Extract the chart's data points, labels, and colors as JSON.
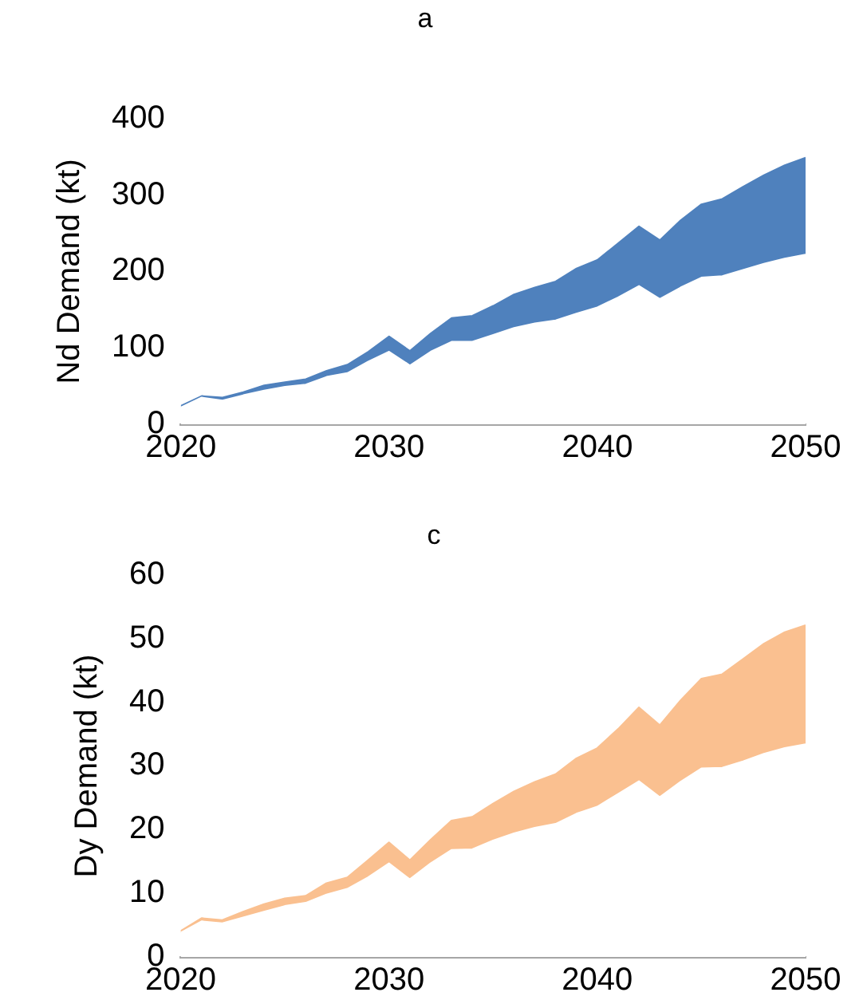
{
  "chart_data": [
    {
      "type": "area",
      "stacked": true,
      "title": "a",
      "ylabel": "Nd Demand (kt)",
      "x": [
        2020,
        2021,
        2022,
        2023,
        2024,
        2025,
        2026,
        2027,
        2028,
        2029,
        2030,
        2031,
        2032,
        2033,
        2034,
        2035,
        2036,
        2037,
        2038,
        2039,
        2040,
        2041,
        2042,
        2043,
        2044,
        2045,
        2046,
        2047,
        2048,
        2049,
        2050
      ],
      "xlim": [
        2020,
        2050
      ],
      "xticks": [
        2020,
        2030,
        2040,
        2050
      ],
      "ylim": [
        0,
        400
      ],
      "yticks": [
        0,
        100,
        200,
        300,
        400
      ],
      "series": [
        {
          "color": "#ffffff",
          "values": [
            22,
            35,
            31,
            38,
            44,
            49,
            52,
            62,
            67,
            82,
            95,
            77,
            95,
            108,
            108,
            117,
            126,
            132,
            136,
            145,
            153,
            166,
            181,
            164,
            179,
            192,
            194,
            202,
            210,
            217,
            222
          ]
        },
        {
          "color": "#4f81bd",
          "values": [
            2,
            2,
            4,
            4,
            7,
            6,
            7,
            8,
            11,
            13,
            20,
            19,
            24,
            31,
            34,
            38,
            44,
            47,
            51,
            59,
            62,
            71,
            78,
            77,
            88,
            96,
            101,
            109,
            116,
            122,
            127
          ]
        }
      ]
    },
    {
      "type": "area",
      "stacked": true,
      "title": "c",
      "ylabel": "Dy Demand (kt)",
      "x": [
        2020,
        2021,
        2022,
        2023,
        2024,
        2025,
        2026,
        2027,
        2028,
        2029,
        2030,
        2031,
        2032,
        2033,
        2034,
        2035,
        2036,
        2037,
        2038,
        2039,
        2040,
        2041,
        2042,
        2043,
        2044,
        2045,
        2046,
        2047,
        2048,
        2049,
        2050
      ],
      "xlim": [
        2020,
        2050
      ],
      "xticks": [
        2020,
        2030,
        2040,
        2050
      ],
      "ylim": [
        0,
        60
      ],
      "yticks": [
        0,
        10,
        20,
        30,
        40,
        50,
        60
      ],
      "series": [
        {
          "color": "#ffffff",
          "values": [
            3.8,
            5.6,
            5.3,
            6.2,
            7.1,
            8.0,
            8.5,
            9.8,
            10.7,
            12.5,
            14.7,
            12.2,
            14.7,
            16.8,
            16.9,
            18.3,
            19.4,
            20.3,
            20.9,
            22.5,
            23.6,
            25.6,
            27.6,
            25.1,
            27.5,
            29.6,
            29.7,
            30.7,
            31.9,
            32.8,
            33.4
          ]
        },
        {
          "color": "#fac090",
          "values": [
            0.3,
            0.5,
            0.5,
            0.9,
            1.2,
            1.2,
            1.1,
            1.8,
            1.8,
            2.7,
            3.3,
            3.0,
            3.7,
            4.6,
            5.1,
            5.8,
            6.6,
            7.2,
            7.8,
            8.7,
            9.2,
            10.2,
            11.6,
            11.3,
            12.8,
            14.1,
            14.7,
            16.1,
            17.3,
            18.2,
            18.7
          ]
        }
      ]
    }
  ]
}
